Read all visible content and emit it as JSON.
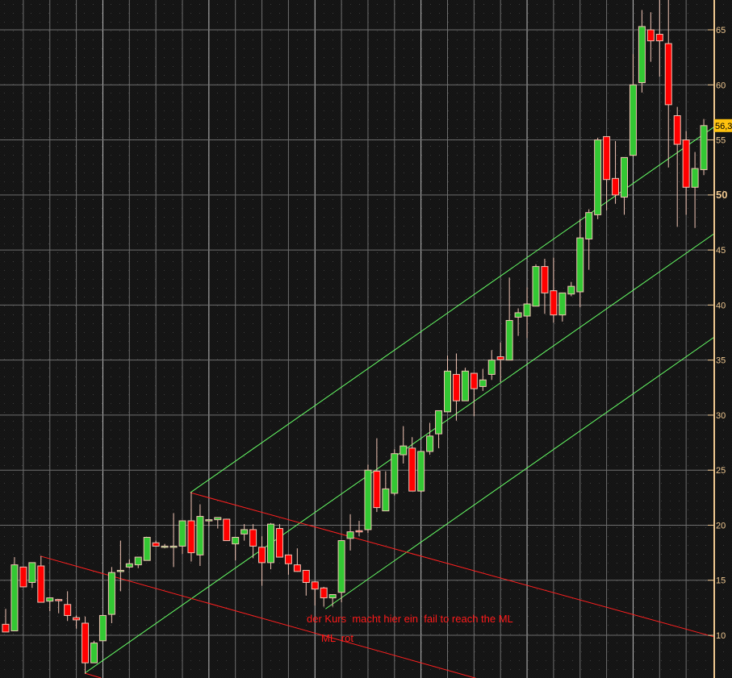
{
  "chart_data": {
    "type": "candlestick",
    "title": "",
    "xlabel": "",
    "ylabel": "",
    "ylim": [
      6.12,
      67.71
    ],
    "y_ticks": [
      10,
      15,
      20,
      25,
      30,
      35,
      40,
      45,
      50,
      55,
      60,
      65
    ],
    "y_tick_labels": [
      "10",
      "15",
      "20",
      "25",
      "30",
      "35",
      "40",
      "45",
      "50",
      "55",
      "60",
      "65"
    ],
    "y_major_tick": 50,
    "y_axis_position": "right",
    "grid": true,
    "last_price_label": "56,3",
    "colors": {
      "up": "#33c833",
      "down": "#ff0000",
      "outline": "#f0c4b4",
      "axis": "#f0c890",
      "grid": "#6e6e6e",
      "tag": "#ffc20e",
      "channel_green": "#66ff66",
      "channel_red": "#ff2020",
      "background": "#161616"
    },
    "ohlc": [
      [
        11.0,
        12.4,
        10.3,
        10.3
      ],
      [
        10.4,
        17.1,
        10.4,
        16.4
      ],
      [
        16.2,
        16.2,
        14.4,
        14.4
      ],
      [
        14.8,
        16.6,
        14.3,
        16.6
      ],
      [
        16.3,
        17.2,
        13.0,
        13.0
      ],
      [
        13.1,
        13.4,
        12.2,
        13.4
      ],
      [
        13.25,
        13.3,
        12.0,
        13.2
      ],
      [
        12.8,
        14.0,
        11.3,
        11.8
      ],
      [
        11.6,
        11.8,
        10.6,
        11.4
      ],
      [
        11.1,
        11.7,
        6.5,
        7.5
      ],
      [
        7.5,
        9.5,
        7.5,
        9.3
      ],
      [
        9.5,
        11.8,
        9.5,
        11.8
      ],
      [
        11.9,
        16.2,
        11.1,
        15.7
      ],
      [
        15.9,
        18.6,
        14.0,
        15.9
      ],
      [
        16.2,
        16.9,
        16.1,
        16.5
      ],
      [
        16.4,
        17.1,
        16.1,
        17.1
      ],
      [
        16.8,
        18.9,
        16.8,
        18.9
      ],
      [
        18.4,
        18.6,
        18.1,
        18.1
      ],
      [
        18.1,
        18.3,
        17.9,
        18.1
      ],
      [
        18.1,
        21.1,
        16.2,
        18.1
      ],
      [
        18.1,
        20.4,
        17.4,
        20.4
      ],
      [
        20.4,
        23.0,
        16.7,
        17.5
      ],
      [
        17.3,
        21.9,
        16.3,
        20.8
      ],
      [
        20.5,
        20.5,
        19.9,
        20.5
      ],
      [
        20.5,
        20.7,
        19.7,
        20.7
      ],
      [
        20.55,
        20.55,
        18.6,
        18.6
      ],
      [
        18.3,
        18.9,
        16.8,
        18.9
      ],
      [
        19.2,
        20.1,
        18.6,
        19.6
      ],
      [
        19.6,
        20.1,
        17.0,
        18.1
      ],
      [
        18.0,
        19.0,
        14.5,
        16.6
      ],
      [
        16.6,
        20.2,
        16.0,
        20.1
      ],
      [
        19.7,
        20.1,
        17.1,
        17.1
      ],
      [
        17.3,
        17.3,
        15.5,
        16.5
      ],
      [
        16.4,
        17.9,
        15.8,
        15.8
      ],
      [
        15.9,
        15.9,
        13.6,
        14.8
      ],
      [
        14.85,
        14.85,
        12.7,
        14.2
      ],
      [
        14.3,
        14.4,
        12.6,
        13.4
      ],
      [
        13.4,
        13.7,
        12.6,
        13.7
      ],
      [
        13.9,
        18.6,
        13.0,
        18.6
      ],
      [
        18.8,
        21.0,
        17.7,
        19.4
      ],
      [
        19.5,
        20.4,
        19.0,
        19.4
      ],
      [
        19.6,
        25.5,
        19.3,
        25.0
      ],
      [
        24.9,
        27.9,
        21.2,
        21.6
      ],
      [
        21.3,
        24.9,
        21.3,
        23.3
      ],
      [
        22.9,
        26.9,
        22.7,
        26.5
      ],
      [
        26.4,
        29.0,
        25.6,
        27.2
      ],
      [
        27.0,
        28.0,
        23.1,
        23.1
      ],
      [
        23.1,
        26.7,
        23.0,
        26.7
      ],
      [
        26.7,
        29.3,
        26.4,
        28.1
      ],
      [
        28.3,
        30.4,
        27.0,
        30.4
      ],
      [
        30.3,
        35.4,
        30.3,
        34.0
      ],
      [
        33.7,
        35.6,
        29.5,
        31.3
      ],
      [
        31.3,
        34.3,
        31.3,
        34.0
      ],
      [
        33.8,
        33.8,
        29.9,
        32.4
      ],
      [
        32.6,
        34.2,
        32.2,
        33.2
      ],
      [
        33.7,
        35.9,
        33.2,
        35.0
      ],
      [
        35.3,
        36.6,
        33.0,
        35.05
      ],
      [
        35.0,
        42.5,
        35.0,
        38.6
      ],
      [
        38.9,
        39.7,
        37.2,
        39.3
      ],
      [
        39.0,
        41.6,
        37.0,
        40.1
      ],
      [
        39.9,
        43.7,
        39.9,
        43.5
      ],
      [
        43.5,
        44.2,
        39.2,
        41.1
      ],
      [
        41.3,
        44.3,
        38.4,
        39.1
      ],
      [
        39.1,
        41.1,
        38.5,
        41.1
      ],
      [
        41.0,
        42.1,
        40.8,
        41.7
      ],
      [
        41.2,
        47.8,
        39.8,
        46.1
      ],
      [
        46.0,
        48.7,
        43.2,
        48.4
      ],
      [
        48.2,
        55.2,
        47.8,
        55.0
      ],
      [
        55.3,
        55.3,
        48.6,
        51.4
      ],
      [
        51.5,
        54.9,
        49.2,
        50.0
      ],
      [
        49.8,
        53.4,
        48.2,
        53.4
      ],
      [
        53.6,
        62.8,
        53.5,
        60.0
      ],
      [
        60.2,
        66.8,
        59.3,
        65.3
      ],
      [
        65.0,
        66.6,
        62.1,
        64.0
      ],
      [
        64.6,
        67.8,
        60.75,
        64.0
      ],
      [
        63.75,
        67.8,
        52.5,
        58.2
      ],
      [
        57.2,
        58.0,
        47.1,
        54.6
      ],
      [
        55.0,
        55.8,
        48.2,
        50.7
      ],
      [
        50.7,
        53.9,
        47.0,
        52.4
      ],
      [
        52.3,
        56.9,
        51.8,
        56.3
      ]
    ],
    "trendlines": [
      {
        "color": "green",
        "points": [
          [
            20.9,
            22.96
          ],
          [
            80.2,
            56.2
          ]
        ]
      },
      {
        "color": "green",
        "points": [
          [
            8.95,
            6.56
          ],
          [
            80.2,
            46.5
          ]
        ]
      },
      {
        "color": "green",
        "points": [
          [
            36.2,
            12.4
          ],
          [
            80.2,
            37.1
          ]
        ]
      },
      {
        "color": "red",
        "points": [
          [
            20.9,
            22.96
          ],
          [
            80.2,
            9.85
          ]
        ]
      },
      {
        "color": "red",
        "points": [
          [
            3.9,
            17.2
          ],
          [
            53.2,
            6.1
          ]
        ]
      },
      {
        "color": "red",
        "points": [
          [
            8.95,
            6.56
          ],
          [
            10.8,
            6.12
          ]
        ]
      }
    ],
    "annotations": [
      "der Kurs  macht hier ein  fail to reach the ML",
      "ML  rot"
    ]
  }
}
